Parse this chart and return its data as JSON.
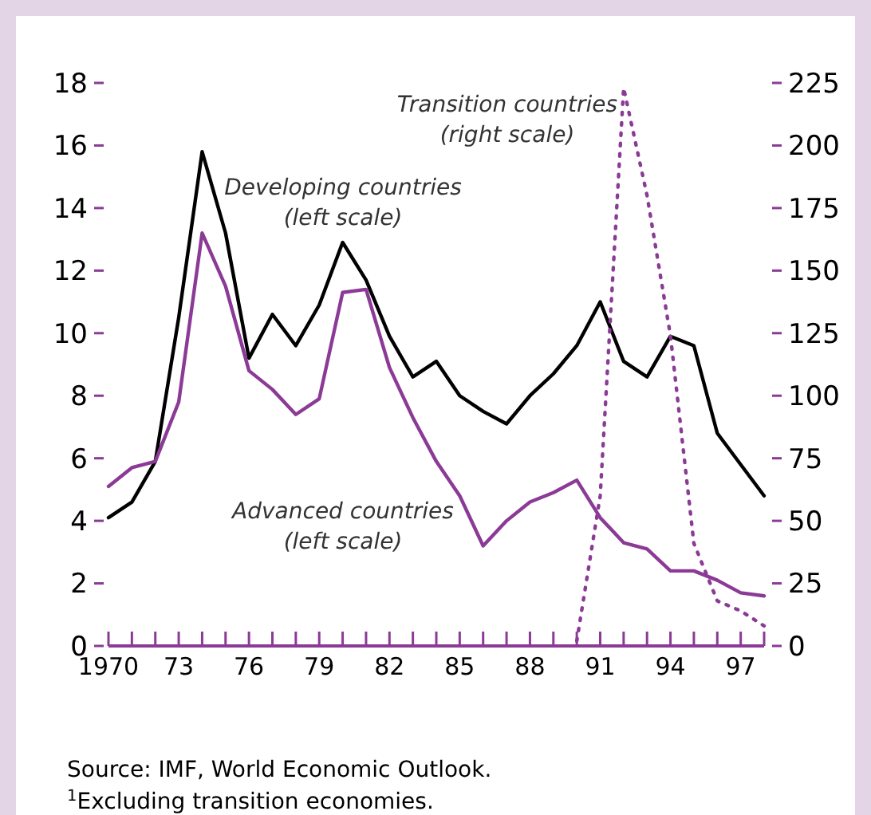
{
  "chart_data": {
    "type": "line",
    "x": [
      1970,
      1971,
      1972,
      1973,
      1974,
      1975,
      1976,
      1977,
      1978,
      1979,
      1980,
      1981,
      1982,
      1983,
      1984,
      1985,
      1986,
      1987,
      1988,
      1989,
      1990,
      1991,
      1992,
      1993,
      1994,
      1995,
      1996,
      1997,
      1998
    ],
    "series": [
      {
        "name": "Developing countries (left scale)",
        "color": "#000000",
        "values": [
          4.1,
          4.6,
          5.9,
          10.5,
          15.8,
          13.2,
          9.2,
          10.6,
          9.6,
          10.9,
          12.9,
          11.7,
          9.9,
          8.6,
          9.1,
          8.0,
          7.5,
          7.1,
          8.0,
          8.7,
          9.6,
          11.0,
          9.1,
          8.6,
          9.9,
          9.6,
          6.8,
          5.8,
          4.8
        ]
      },
      {
        "name": "Advanced countries (left scale)",
        "color": "#8b3a96",
        "values": [
          5.1,
          5.7,
          5.9,
          7.8,
          13.2,
          11.5,
          8.8,
          8.2,
          7.4,
          7.9,
          11.3,
          11.4,
          8.9,
          7.3,
          5.9,
          4.8,
          3.2,
          4.0,
          4.6,
          4.9,
          5.3,
          4.1,
          3.3,
          3.1,
          2.4,
          2.4,
          2.1,
          1.7,
          1.6
        ]
      },
      {
        "name": "Transition countries (right scale)",
        "color": "#8b3a96",
        "axis": "y2",
        "line_style": "dotted",
        "x": [
          1990,
          1991,
          1992,
          1993,
          1994,
          1995,
          1996,
          1997,
          1998
        ],
        "values": [
          2,
          60,
          223,
          180,
          124,
          41,
          18,
          14,
          8
        ]
      }
    ],
    "xlim": [
      1970,
      1998
    ],
    "xticks": [
      {
        "value": 1970,
        "label": "1970"
      },
      {
        "value": 1971,
        "label": null
      },
      {
        "value": 1972,
        "label": null
      },
      {
        "value": 1973,
        "label": "73"
      },
      {
        "value": 1974,
        "label": null
      },
      {
        "value": 1975,
        "label": null
      },
      {
        "value": 1976,
        "label": "76"
      },
      {
        "value": 1977,
        "label": null
      },
      {
        "value": 1978,
        "label": null
      },
      {
        "value": 1979,
        "label": "79"
      },
      {
        "value": 1980,
        "label": null
      },
      {
        "value": 1981,
        "label": null
      },
      {
        "value": 1982,
        "label": "82"
      },
      {
        "value": 1983,
        "label": null
      },
      {
        "value": 1984,
        "label": null
      },
      {
        "value": 1985,
        "label": "85"
      },
      {
        "value": 1986,
        "label": null
      },
      {
        "value": 1987,
        "label": null
      },
      {
        "value": 1988,
        "label": "88"
      },
      {
        "value": 1989,
        "label": null
      },
      {
        "value": 1990,
        "label": null
      },
      {
        "value": 1991,
        "label": "91"
      },
      {
        "value": 1992,
        "label": null
      },
      {
        "value": 1993,
        "label": null
      },
      {
        "value": 1994,
        "label": "94"
      },
      {
        "value": 1995,
        "label": null
      },
      {
        "value": 1996,
        "label": null
      },
      {
        "value": 1997,
        "label": "97"
      },
      {
        "value": 1998,
        "label": null
      }
    ],
    "ylim": [
      0,
      18
    ],
    "yticks": [
      0,
      2,
      4,
      6,
      8,
      10,
      12,
      14,
      16,
      18
    ],
    "y2lim": [
      0,
      225
    ],
    "y2ticks": [
      0,
      25,
      50,
      75,
      100,
      125,
      150,
      175,
      200,
      225
    ],
    "line_style": "solid",
    "annotations": [
      "Source:  IMF, World Economic Outlook.",
      "$^{1}$Excluding transition economies."
    ]
  }
}
